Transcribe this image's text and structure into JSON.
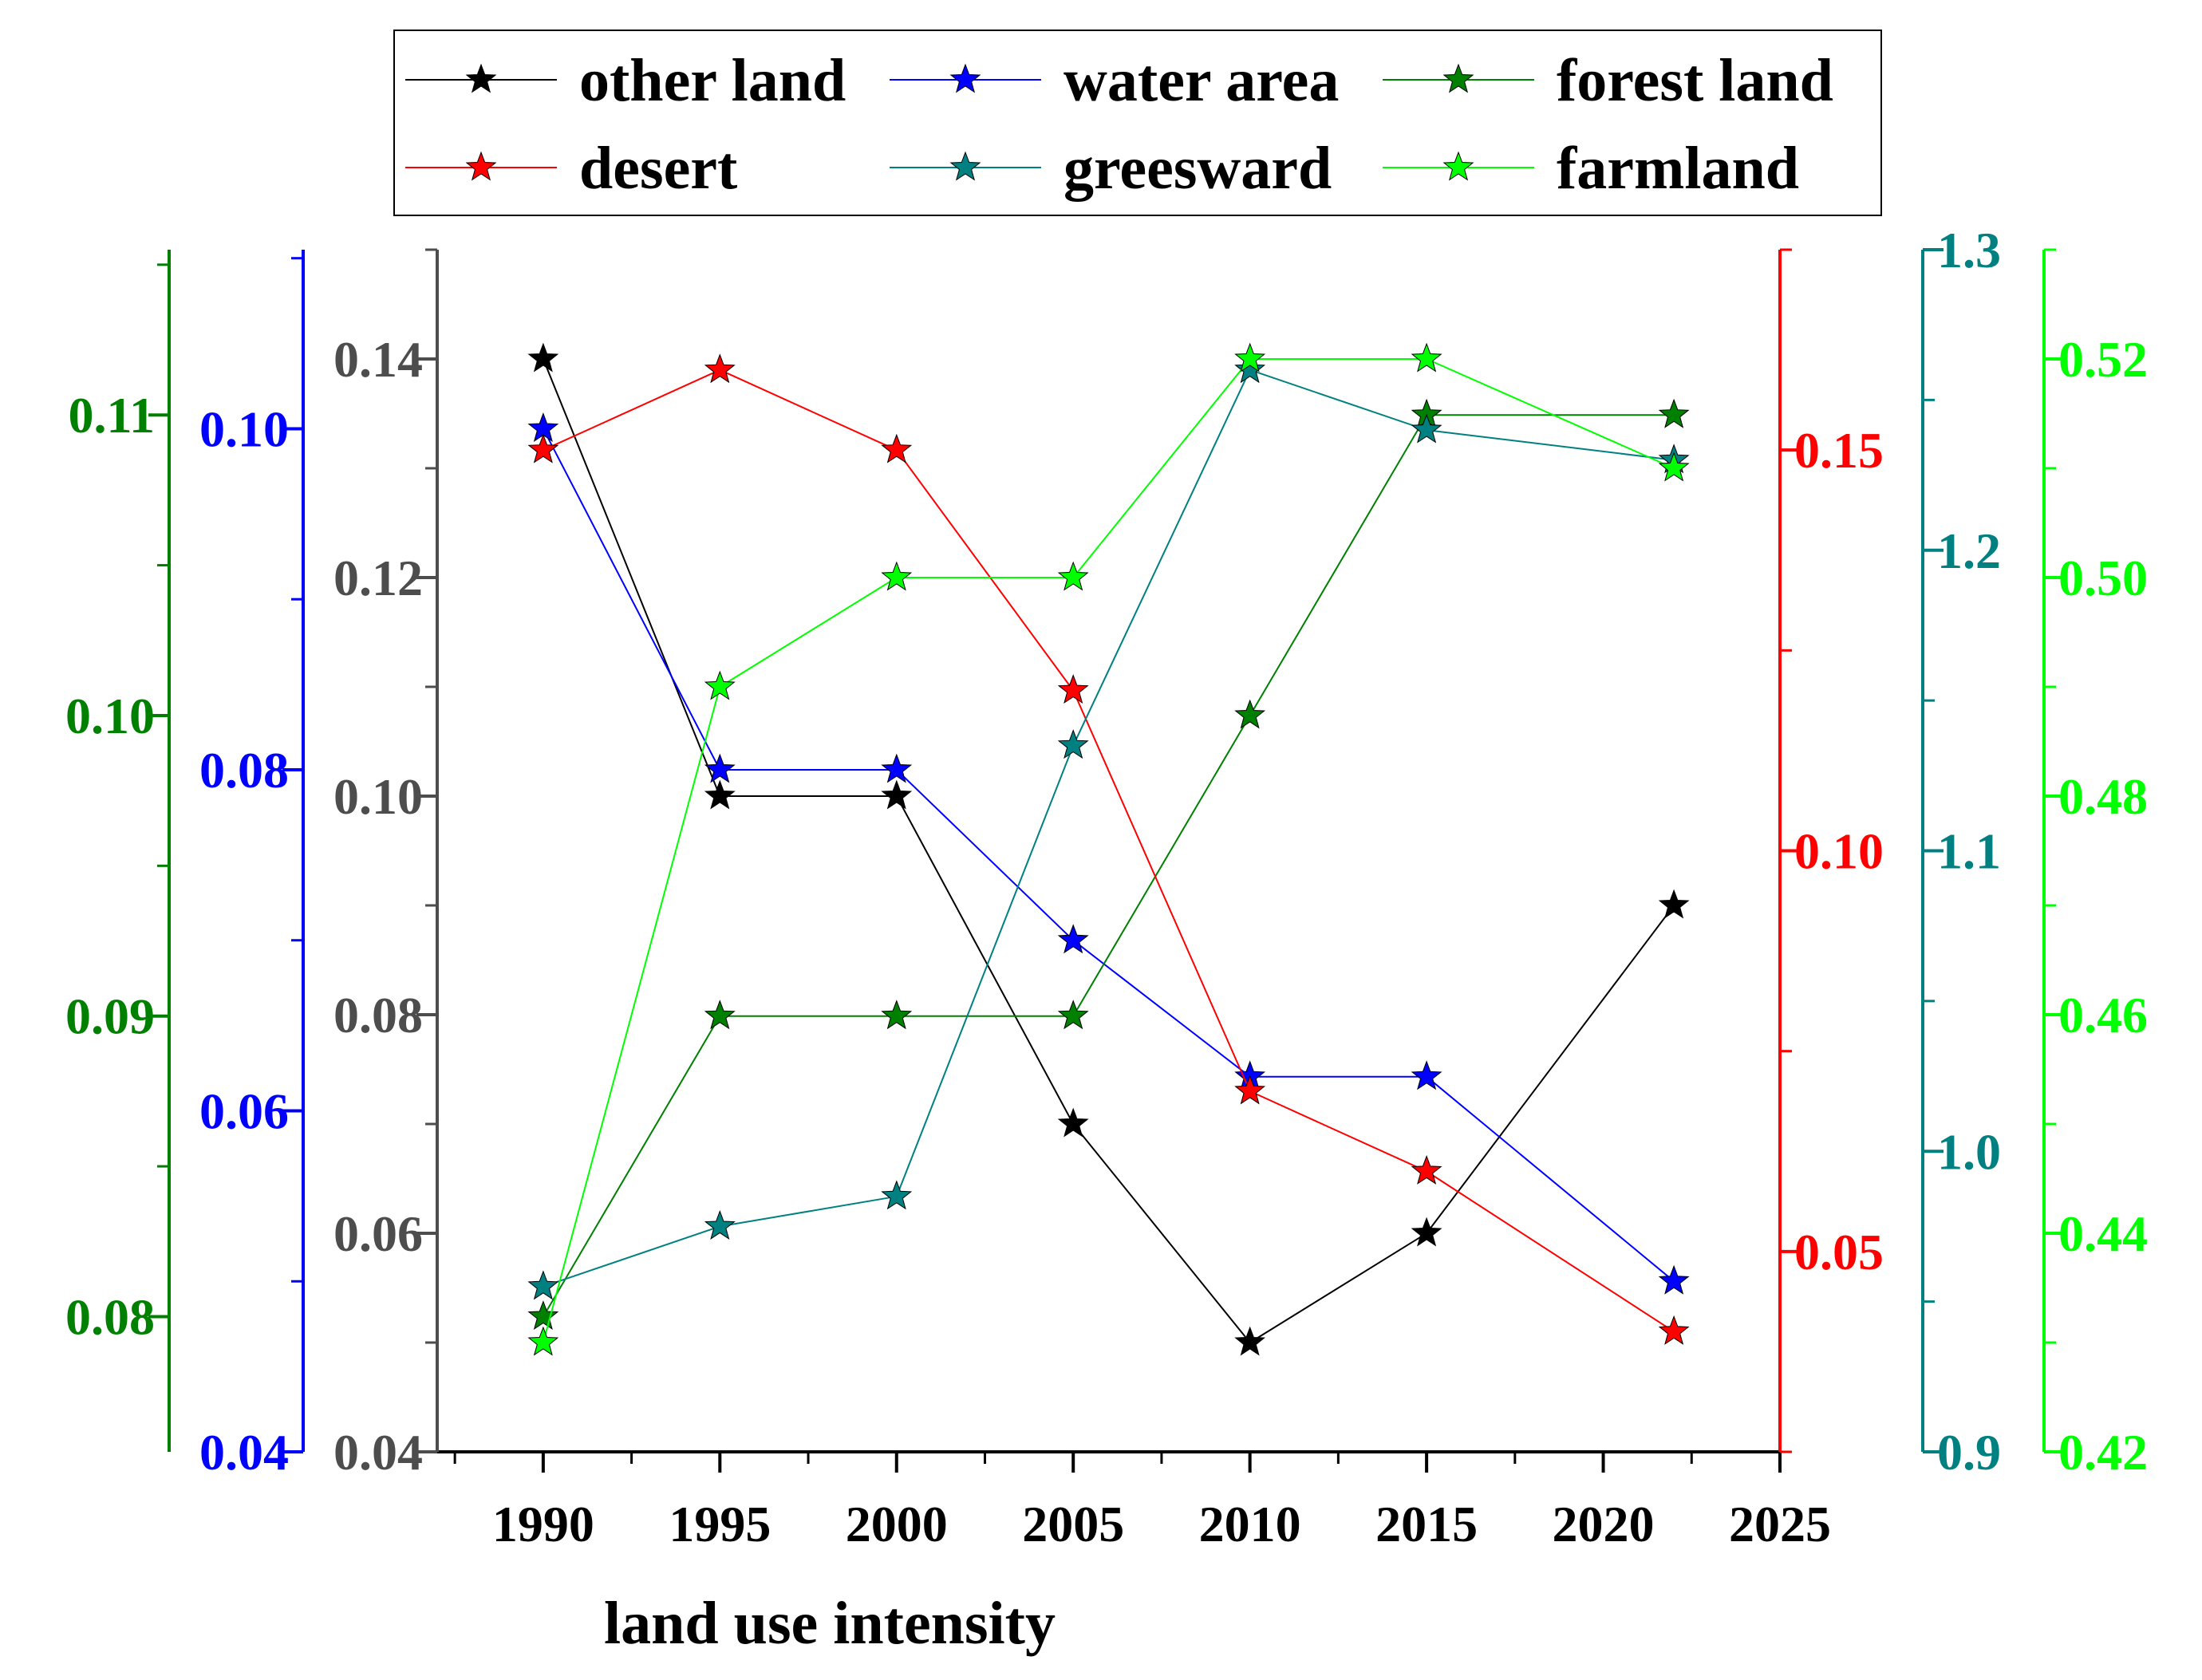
{
  "chart_data": {
    "type": "line",
    "xlabel": "land use intensity",
    "x": [
      1990,
      1995,
      2000,
      2005,
      2010,
      2015,
      2022
    ],
    "x_axis": {
      "range": [
        1987,
        2025
      ],
      "major_ticks": [
        1990,
        1995,
        2000,
        2005,
        2010,
        2015,
        2020,
        2025
      ],
      "tick_labels": [
        "1990",
        "1995",
        "2000",
        "2005",
        "2010",
        "2015",
        "2020",
        "2025"
      ]
    },
    "legend": {
      "position": "top",
      "entries": [
        "other land",
        "water area",
        "forest land",
        "desert",
        "greesward",
        "farmland"
      ]
    },
    "axes": {
      "forest": {
        "side": "left",
        "order": 1,
        "color": "#008000",
        "range": [
          0.0755,
          0.1155
        ],
        "ticks": [
          0.08,
          0.09,
          0.1,
          0.11
        ],
        "tick_labels": [
          "0.08",
          "0.09",
          "0.10",
          "0.11"
        ],
        "minor_step": 0.005
      },
      "water": {
        "side": "left",
        "order": 2,
        "color": "#0000ff",
        "range": [
          0.04,
          0.1105
        ],
        "ticks": [
          0.04,
          0.06,
          0.08,
          0.1
        ],
        "tick_labels": [
          "0.04",
          "0.06",
          "0.08",
          "0.10"
        ],
        "minor_step": 0.01
      },
      "other": {
        "side": "left",
        "order": 3,
        "color": "#4d4d4d",
        "range": [
          0.04,
          0.15
        ],
        "ticks": [
          0.04,
          0.06,
          0.08,
          0.1,
          0.12,
          0.14
        ],
        "tick_labels": [
          "0.04",
          "0.06",
          "0.08",
          "0.10",
          "0.12",
          "0.14"
        ],
        "minor_step": 0.01
      },
      "desert": {
        "side": "right",
        "order": 1,
        "color": "#ff0000",
        "range": [
          0.025,
          0.175
        ],
        "ticks": [
          0.05,
          0.1,
          0.15
        ],
        "tick_labels": [
          "0.05",
          "0.10",
          "0.15"
        ],
        "minor_step": 0.025
      },
      "greesward": {
        "side": "right",
        "order": 2,
        "color": "#008080",
        "range": [
          0.9,
          1.3
        ],
        "ticks": [
          0.9,
          1.0,
          1.1,
          1.2,
          1.3
        ],
        "tick_labels": [
          "0.9",
          "1.0",
          "1.1",
          "1.2",
          "1.3"
        ],
        "minor_step": 0.05
      },
      "farmland": {
        "side": "right",
        "order": 3,
        "color": "#00ff00",
        "range": [
          0.42,
          0.53
        ],
        "ticks": [
          0.42,
          0.44,
          0.46,
          0.48,
          0.5,
          0.52
        ],
        "tick_labels": [
          "0.42",
          "0.44",
          "0.46",
          "0.48",
          "0.50",
          "0.52"
        ],
        "minor_step": 0.01
      }
    },
    "series": [
      {
        "name": "other land",
        "axis": "other",
        "color": "#000000",
        "values": [
          0.14,
          0.1,
          0.1,
          0.07,
          0.05,
          0.06,
          0.09
        ]
      },
      {
        "name": "water area",
        "axis": "water",
        "color": "#0000ff",
        "values": [
          0.1,
          0.08,
          0.08,
          0.07,
          0.062,
          0.062,
          0.05
        ]
      },
      {
        "name": "forest land",
        "axis": "forest",
        "color": "#008000",
        "values": [
          0.08,
          0.09,
          0.09,
          0.09,
          0.1,
          0.11,
          0.11
        ]
      },
      {
        "name": "desert",
        "axis": "desert",
        "color": "#ff0000",
        "values": [
          0.15,
          0.16,
          0.15,
          0.12,
          0.07,
          0.06,
          0.04
        ]
      },
      {
        "name": "greesward",
        "axis": "greesward",
        "color": "#008080",
        "values": [
          0.955,
          0.975,
          0.985,
          1.135,
          1.26,
          1.24,
          1.23
        ]
      },
      {
        "name": "farmland",
        "axis": "farmland",
        "color": "#00ff00",
        "values": [
          0.43,
          0.49,
          0.5,
          0.5,
          0.52,
          0.52,
          0.51
        ]
      }
    ]
  }
}
